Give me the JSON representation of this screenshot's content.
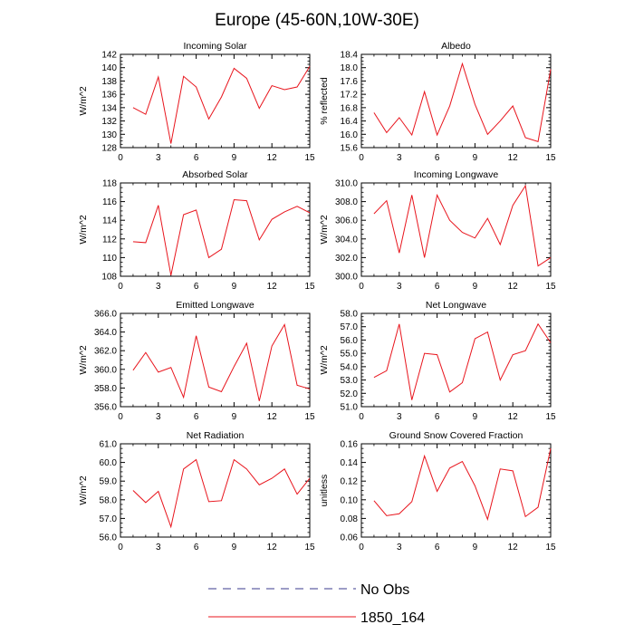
{
  "figure": {
    "title": "Europe (45-60N,10W-30E)",
    "line_color": "#e8141c",
    "obs_color": "#3a3a8c"
  },
  "legend": {
    "location": "bottom-center",
    "items": [
      {
        "label": "No Obs",
        "style": "dashed",
        "color": "#3a3a8c"
      },
      {
        "label": "1850_164",
        "style": "solid",
        "color": "#e8141c"
      }
    ]
  },
  "chart_data": [
    {
      "type": "line",
      "title": "Incoming Solar",
      "xlabel": "",
      "ylabel": "W/m^2",
      "xlim": [
        0,
        15
      ],
      "ylim": [
        128,
        142
      ],
      "xticks": [
        0,
        3,
        6,
        9,
        12,
        15
      ],
      "yticks": [
        128,
        130,
        132,
        134,
        136,
        138,
        140,
        142
      ],
      "ytick_decimals": 0,
      "series": [
        {
          "x": [
            1,
            2,
            3,
            4,
            5,
            6,
            7,
            8,
            9,
            10,
            11,
            12,
            13,
            14,
            15
          ],
          "y": [
            134.0,
            133.0,
            138.6,
            128.6,
            138.7,
            137.1,
            132.3,
            135.6,
            139.9,
            138.4,
            133.9,
            137.3,
            136.7,
            137.1,
            140.2
          ]
        }
      ]
    },
    {
      "type": "line",
      "title": "Albedo",
      "xlabel": "",
      "ylabel": "% reflected",
      "xlim": [
        0,
        15
      ],
      "ylim": [
        15.6,
        18.4
      ],
      "xticks": [
        0,
        3,
        6,
        9,
        12,
        15
      ],
      "yticks": [
        15.6,
        16.0,
        16.4,
        16.8,
        17.2,
        17.6,
        18.0,
        18.4
      ],
      "ytick_decimals": 1,
      "series": [
        {
          "x": [
            1,
            2,
            3,
            4,
            5,
            6,
            7,
            8,
            9,
            10,
            11,
            12,
            13,
            14,
            15
          ],
          "y": [
            16.65,
            16.05,
            16.5,
            15.98,
            17.28,
            15.98,
            16.85,
            18.12,
            16.9,
            16.0,
            16.4,
            16.85,
            15.9,
            15.78,
            17.95
          ]
        }
      ]
    },
    {
      "type": "line",
      "title": "Absorbed Solar",
      "xlabel": "",
      "ylabel": "W/m^2",
      "xlim": [
        0,
        15
      ],
      "ylim": [
        108,
        118
      ],
      "xticks": [
        0,
        3,
        6,
        9,
        12,
        15
      ],
      "yticks": [
        108,
        110,
        112,
        114,
        116,
        118
      ],
      "ytick_decimals": 0,
      "series": [
        {
          "x": [
            1,
            2,
            3,
            4,
            5,
            6,
            7,
            8,
            9,
            10,
            11,
            12,
            13,
            14,
            15
          ],
          "y": [
            111.7,
            111.6,
            115.6,
            108.1,
            114.6,
            115.1,
            110.0,
            110.9,
            116.2,
            116.1,
            111.9,
            114.1,
            114.9,
            115.5,
            114.8
          ]
        }
      ]
    },
    {
      "type": "line",
      "title": "Incoming Longwave",
      "xlabel": "",
      "ylabel": "W/m^2",
      "xlim": [
        0,
        15
      ],
      "ylim": [
        300.0,
        310.0
      ],
      "xticks": [
        0,
        3,
        6,
        9,
        12,
        15
      ],
      "yticks": [
        300.0,
        302.0,
        304.0,
        306.0,
        308.0,
        310.0
      ],
      "ytick_decimals": 1,
      "series": [
        {
          "x": [
            1,
            2,
            3,
            4,
            5,
            6,
            7,
            8,
            9,
            10,
            11,
            12,
            13,
            14,
            15
          ],
          "y": [
            306.7,
            308.1,
            302.5,
            308.7,
            302.0,
            308.7,
            306.0,
            304.7,
            304.1,
            306.2,
            303.4,
            307.6,
            309.7,
            301.1,
            302.0
          ]
        }
      ]
    },
    {
      "type": "line",
      "title": "Emitted Longwave",
      "xlabel": "",
      "ylabel": "W/m^2",
      "xlim": [
        0,
        15
      ],
      "ylim": [
        356.0,
        366.0
      ],
      "xticks": [
        0,
        3,
        6,
        9,
        12,
        15
      ],
      "yticks": [
        356.0,
        358.0,
        360.0,
        362.0,
        364.0,
        366.0
      ],
      "ytick_decimals": 1,
      "series": [
        {
          "x": [
            1,
            2,
            3,
            4,
            5,
            6,
            7,
            8,
            9,
            10,
            11,
            12,
            13,
            14,
            15
          ],
          "y": [
            359.9,
            361.8,
            359.7,
            360.2,
            357.0,
            363.6,
            358.1,
            357.6,
            360.3,
            362.8,
            356.6,
            362.5,
            364.8,
            358.3,
            357.9
          ]
        }
      ]
    },
    {
      "type": "line",
      "title": "Net Longwave",
      "xlabel": "",
      "ylabel": "W/m^2",
      "xlim": [
        0,
        15
      ],
      "ylim": [
        51.0,
        58.0
      ],
      "xticks": [
        0,
        3,
        6,
        9,
        12,
        15
      ],
      "yticks": [
        51.0,
        52.0,
        53.0,
        54.0,
        55.0,
        56.0,
        57.0,
        58.0
      ],
      "ytick_decimals": 1,
      "series": [
        {
          "x": [
            1,
            2,
            3,
            4,
            5,
            6,
            7,
            8,
            9,
            10,
            11,
            12,
            13,
            14,
            15
          ],
          "y": [
            53.2,
            53.7,
            57.2,
            51.5,
            55.0,
            54.9,
            52.1,
            52.8,
            56.1,
            56.6,
            53.0,
            54.9,
            55.2,
            57.2,
            55.8
          ]
        }
      ]
    },
    {
      "type": "line",
      "title": "Net Radiation",
      "xlabel": "",
      "ylabel": "W/m^2",
      "xlim": [
        0,
        15
      ],
      "ylim": [
        56.0,
        61.0
      ],
      "xticks": [
        0,
        3,
        6,
        9,
        12,
        15
      ],
      "yticks": [
        56.0,
        57.0,
        58.0,
        59.0,
        60.0,
        61.0
      ],
      "ytick_decimals": 1,
      "series": [
        {
          "x": [
            1,
            2,
            3,
            4,
            5,
            6,
            7,
            8,
            9,
            10,
            11,
            12,
            13,
            14,
            15
          ],
          "y": [
            58.5,
            57.85,
            58.45,
            56.55,
            59.65,
            60.15,
            57.9,
            57.95,
            60.15,
            59.65,
            58.8,
            59.15,
            59.65,
            58.3,
            59.15
          ]
        }
      ]
    },
    {
      "type": "line",
      "title": "Ground Snow Covered Fraction",
      "xlabel": "",
      "ylabel": "unitless",
      "xlim": [
        0,
        15
      ],
      "ylim": [
        0.06,
        0.16
      ],
      "xticks": [
        0,
        3,
        6,
        9,
        12,
        15
      ],
      "yticks": [
        0.06,
        0.08,
        0.1,
        0.12,
        0.14,
        0.16
      ],
      "ytick_decimals": 2,
      "series": [
        {
          "x": [
            1,
            2,
            3,
            4,
            5,
            6,
            7,
            8,
            9,
            10,
            11,
            12,
            13,
            14,
            15
          ],
          "y": [
            0.099,
            0.083,
            0.085,
            0.098,
            0.147,
            0.109,
            0.134,
            0.141,
            0.115,
            0.079,
            0.133,
            0.131,
            0.082,
            0.092,
            0.155
          ]
        }
      ]
    }
  ]
}
